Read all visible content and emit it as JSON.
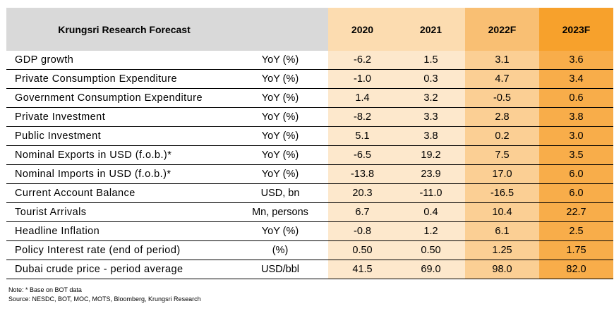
{
  "table": {
    "title": "Krungsri Research Forecast",
    "years": [
      "2020",
      "2021",
      "2022F",
      "2023F"
    ],
    "rows": [
      {
        "label": "GDP growth",
        "unit": "YoY (%)",
        "values": [
          "-6.2",
          "1.5",
          "3.1",
          "3.6"
        ]
      },
      {
        "label": "Private Consumption Expenditure",
        "unit": "YoY (%)",
        "values": [
          "-1.0",
          "0.3",
          "4.7",
          "3.4"
        ]
      },
      {
        "label": "Government Consumption Expenditure",
        "unit": "YoY (%)",
        "values": [
          "1.4",
          "3.2",
          "-0.5",
          "0.6"
        ]
      },
      {
        "label": "Private Investment",
        "unit": "YoY (%)",
        "values": [
          "-8.2",
          "3.3",
          "2.8",
          "3.8"
        ]
      },
      {
        "label": "Public Investment",
        "unit": "YoY (%)",
        "values": [
          "5.1",
          "3.8",
          "0.2",
          "3.0"
        ]
      },
      {
        "label": "Nominal Exports in USD (f.o.b.)*",
        "unit": "YoY (%)",
        "values": [
          "-6.5",
          "19.2",
          "7.5",
          "3.5"
        ]
      },
      {
        "label": "Nominal Imports in USD (f.o.b.)*",
        "unit": "YoY (%)",
        "values": [
          "-13.8",
          "23.9",
          "17.0",
          "6.0"
        ]
      },
      {
        "label": "Current Account Balance",
        "unit": "USD, bn",
        "values": [
          "20.3",
          "-11.0",
          "-16.5",
          "6.0"
        ]
      },
      {
        "label": "Tourist Arrivals",
        "unit": "Mn, persons",
        "values": [
          "6.7",
          "0.4",
          "10.4",
          "22.7"
        ]
      },
      {
        "label": "Headline Inflation",
        "unit": "YoY (%)",
        "values": [
          "-0.8",
          "1.2",
          "6.1",
          "2.5"
        ]
      },
      {
        "label": "Policy Interest rate (end of period)",
        "unit": "(%)",
        "values": [
          "0.50",
          "0.50",
          "1.25",
          "1.75"
        ]
      },
      {
        "label": "Dubai crude price - period average",
        "unit": "USD/bbl",
        "values": [
          "41.5",
          "69.0",
          "98.0",
          "82.0"
        ]
      }
    ]
  },
  "notes": {
    "note": "Note: * Base on BOT data",
    "source": "Source: NESDC, BOT, MOC, MOTS, Bloomberg, Krungsri Research"
  },
  "colors": {
    "header_gray": "#d9d9d9",
    "col_2020_2021": "#fde8cc",
    "col_2022f": "#fbcf94",
    "col_2023f": "#f8ad4a"
  }
}
